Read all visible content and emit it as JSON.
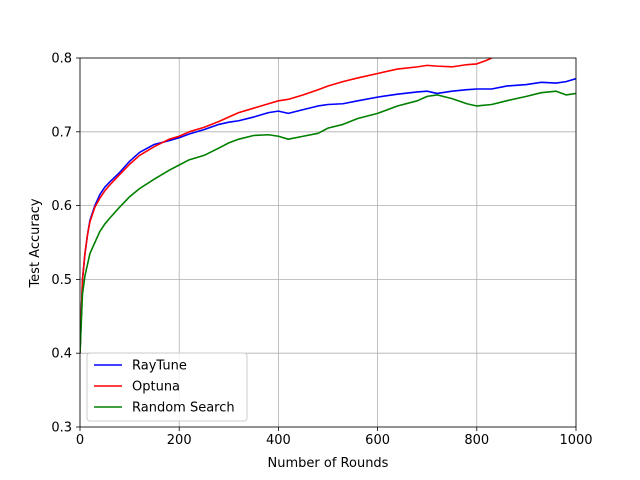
{
  "chart_data": {
    "type": "line",
    "title": "",
    "xlabel": "Number of Rounds",
    "ylabel": "Test Accuracy",
    "xlim": [
      0,
      1000
    ],
    "ylim": [
      0.3,
      0.8
    ],
    "xticks": [
      0,
      200,
      400,
      600,
      800,
      1000
    ],
    "xtick_labels": [
      "0",
      "200",
      "400",
      "600",
      "800",
      "1000"
    ],
    "yticks": [
      0.3,
      0.4,
      0.5,
      0.6,
      0.7,
      0.8
    ],
    "ytick_labels": [
      "0.3",
      "0.4",
      "0.5",
      "0.6",
      "0.7",
      "0.8"
    ],
    "grid": true,
    "legend_position": "lower-left",
    "series": [
      {
        "name": "RayTune",
        "color": "#0000ff",
        "x": [
          0,
          5,
          10,
          15,
          20,
          30,
          40,
          50,
          60,
          80,
          100,
          120,
          150,
          180,
          200,
          220,
          250,
          280,
          300,
          320,
          350,
          380,
          400,
          420,
          450,
          480,
          500,
          530,
          560,
          600,
          640,
          680,
          700,
          720,
          750,
          780,
          800,
          830,
          860,
          900,
          930,
          960,
          980,
          1000
        ],
        "y": [
          0.4,
          0.5,
          0.535,
          0.56,
          0.58,
          0.6,
          0.615,
          0.625,
          0.632,
          0.645,
          0.66,
          0.672,
          0.683,
          0.688,
          0.692,
          0.697,
          0.703,
          0.71,
          0.713,
          0.715,
          0.72,
          0.726,
          0.728,
          0.725,
          0.73,
          0.735,
          0.737,
          0.738,
          0.742,
          0.747,
          0.751,
          0.754,
          0.755,
          0.752,
          0.755,
          0.757,
          0.758,
          0.758,
          0.762,
          0.764,
          0.767,
          0.766,
          0.768,
          0.772
        ]
      },
      {
        "name": "Optuna",
        "color": "#ff0000",
        "x": [
          0,
          5,
          10,
          15,
          20,
          30,
          40,
          50,
          60,
          80,
          100,
          120,
          150,
          180,
          200,
          220,
          250,
          280,
          300,
          320,
          350,
          380,
          400,
          420,
          450,
          480,
          500,
          530,
          560,
          600,
          640,
          680,
          700,
          720,
          750,
          780,
          800,
          820,
          830
        ],
        "y": [
          0.4,
          0.5,
          0.535,
          0.56,
          0.578,
          0.598,
          0.61,
          0.62,
          0.628,
          0.642,
          0.656,
          0.668,
          0.68,
          0.69,
          0.694,
          0.7,
          0.706,
          0.714,
          0.72,
          0.726,
          0.732,
          0.738,
          0.742,
          0.744,
          0.75,
          0.757,
          0.762,
          0.768,
          0.773,
          0.779,
          0.785,
          0.788,
          0.79,
          0.789,
          0.788,
          0.791,
          0.792,
          0.797,
          0.8
        ]
      },
      {
        "name": "Random Search",
        "color": "#008000",
        "x": [
          0,
          5,
          10,
          15,
          20,
          30,
          40,
          50,
          60,
          80,
          100,
          120,
          150,
          180,
          200,
          220,
          250,
          280,
          300,
          320,
          350,
          380,
          400,
          420,
          450,
          480,
          500,
          530,
          560,
          600,
          640,
          680,
          700,
          720,
          750,
          780,
          800,
          830,
          860,
          900,
          930,
          960,
          980,
          1000
        ],
        "y": [
          0.4,
          0.48,
          0.505,
          0.52,
          0.535,
          0.55,
          0.565,
          0.575,
          0.583,
          0.598,
          0.612,
          0.623,
          0.636,
          0.648,
          0.655,
          0.662,
          0.668,
          0.678,
          0.685,
          0.69,
          0.695,
          0.696,
          0.694,
          0.69,
          0.694,
          0.698,
          0.705,
          0.71,
          0.718,
          0.725,
          0.735,
          0.742,
          0.748,
          0.75,
          0.745,
          0.738,
          0.735,
          0.737,
          0.742,
          0.748,
          0.753,
          0.755,
          0.75,
          0.752
        ]
      }
    ]
  }
}
